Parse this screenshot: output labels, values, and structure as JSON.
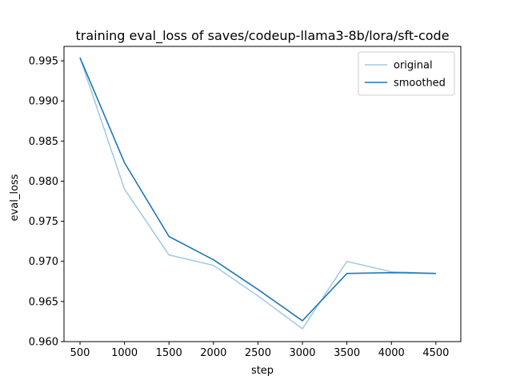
{
  "chart_data": {
    "type": "line",
    "title": "training eval_loss of saves/codeup-llama3-8b/lora/sft-code",
    "xlabel": "step",
    "ylabel": "eval_loss",
    "x": [
      500,
      1000,
      1500,
      2000,
      2500,
      3000,
      3500,
      4000,
      4500
    ],
    "xlim": [
      320,
      4780
    ],
    "ylim": [
      0.96,
      0.9968
    ],
    "xticks": [
      500,
      1000,
      1500,
      2000,
      2500,
      3000,
      3500,
      4000,
      4500
    ],
    "yticks": [
      0.96,
      0.965,
      0.97,
      0.975,
      0.98,
      0.985,
      0.99,
      0.995
    ],
    "xtick_labels": [
      "500",
      "1000",
      "1500",
      "2000",
      "2500",
      "3000",
      "3500",
      "4000",
      "4500"
    ],
    "ytick_labels": [
      "0.960",
      "0.965",
      "0.970",
      "0.975",
      "0.980",
      "0.985",
      "0.990",
      "0.995"
    ],
    "grid": false,
    "legend_position": "top-right",
    "series": [
      {
        "name": "original",
        "color": "#a6cae3",
        "values": [
          0.9954,
          0.979,
          0.9708,
          0.9695,
          0.9657,
          0.9616,
          0.97,
          0.9687,
          0.9685
        ]
      },
      {
        "name": "smoothed",
        "color": "#1f77b4",
        "values": [
          0.9954,
          0.9823,
          0.9731,
          0.9702,
          0.9665,
          0.9626,
          0.9685,
          0.9686,
          0.9685
        ]
      }
    ]
  }
}
